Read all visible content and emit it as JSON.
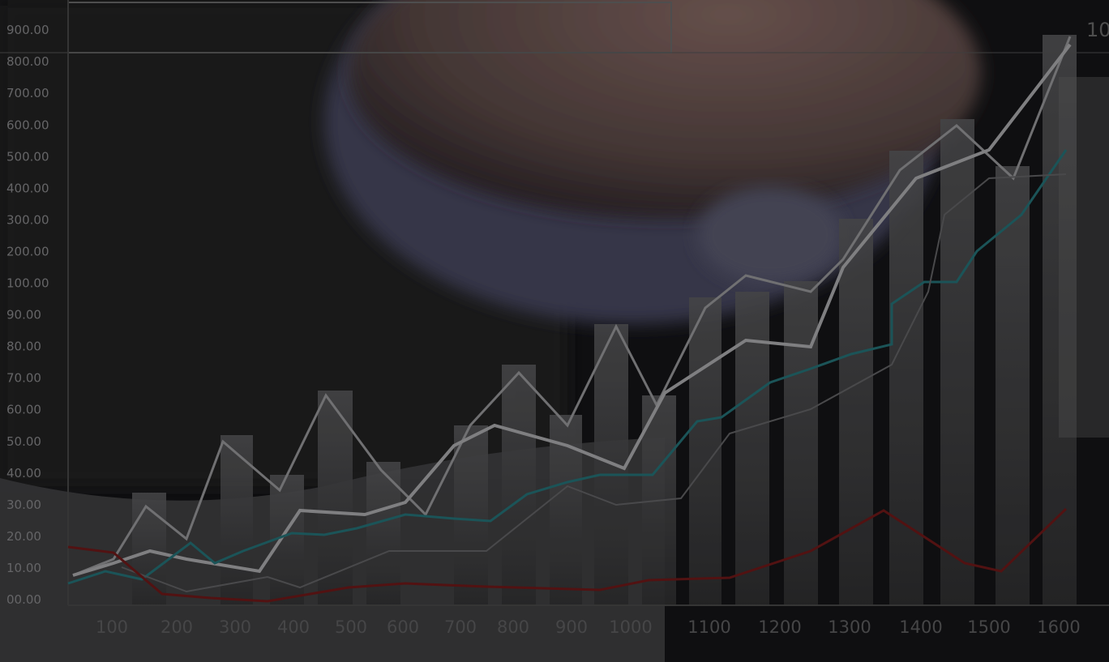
{
  "y_axis_labels": [
    "00.00",
    "10.00",
    "20.00",
    "30.00",
    "40.00",
    "50.00",
    "60.00",
    "70.00",
    "80.00",
    "90.00",
    "100.00",
    "200.00",
    "300.00",
    "400.00",
    "500.00",
    "600.00",
    "700.00",
    "800.00",
    "900.00"
  ],
  "x_axis_labels": [
    "100",
    "200",
    "300",
    "400",
    "500",
    "600",
    "700",
    "800",
    "900",
    "1000",
    "1100",
    "1200",
    "1300",
    "1400",
    "1500",
    "1600"
  ],
  "corner_label": "10"
}
